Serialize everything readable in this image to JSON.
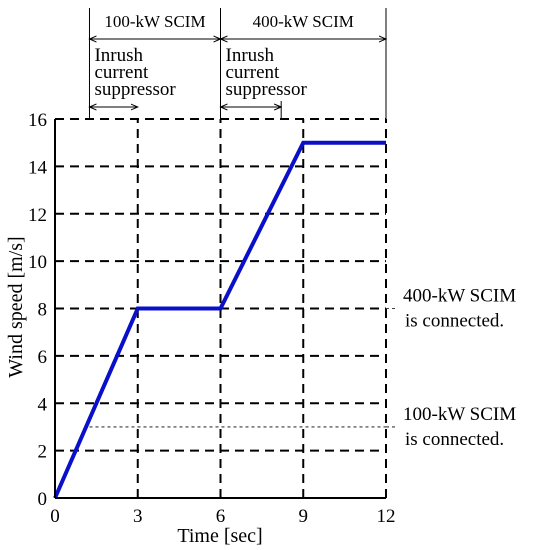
{
  "chart_data": {
    "type": "line",
    "xlabel": "Time [sec]",
    "ylabel": "Wind speed [m/s]",
    "xlim": [
      0,
      12
    ],
    "ylim": [
      0,
      16
    ],
    "xticks": [
      "0",
      "3",
      "6",
      "9",
      "12"
    ],
    "yticks": [
      "0",
      "2",
      "4",
      "6",
      "8",
      "10",
      "12",
      "14",
      "16"
    ],
    "grid": true,
    "series": [
      {
        "x": [
          0,
          3,
          6,
          9,
          12
        ],
        "y": [
          0,
          8,
          8,
          15,
          15
        ],
        "color": "#0a10c8"
      }
    ],
    "threshold_lines": [
      {
        "y": 8,
        "label_line1": "400-kW SCIM",
        "label_line2": "is connected."
      },
      {
        "y": 3,
        "label_line1": "100-kW SCIM",
        "label_line2": "is connected."
      }
    ],
    "interval_annotations": [
      {
        "x_start": 1.25,
        "x_end": 6,
        "label": "100-kW SCIM"
      },
      {
        "x_start": 6,
        "x_end": 12,
        "label": "400-kW SCIM"
      }
    ],
    "suppressor_annotations": [
      {
        "x_start": 1.25,
        "x_end": 3,
        "lines": [
          "Inrush",
          "current",
          "suppressor"
        ]
      },
      {
        "x_start": 6,
        "x_end": 8.2,
        "lines": [
          "Inrush",
          "current",
          "suppressor"
        ]
      }
    ]
  }
}
